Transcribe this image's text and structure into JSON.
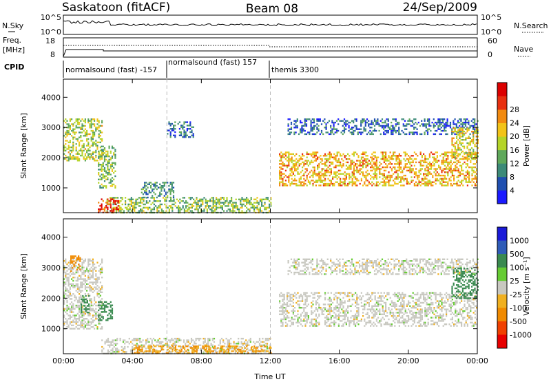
{
  "header": {
    "station": "Saskatoon (fitACF)",
    "beam": "Beam 08",
    "date": "24/Sep/2009"
  },
  "top_panels": {
    "nsky_label": "N.Sky",
    "nsky_ticks": [
      "10^5",
      "10^0"
    ],
    "nsearch_label": "N.Search",
    "nsearch_ticks": [
      "10^5",
      "10^0"
    ],
    "freq_label": "Freq.",
    "freq_unit": "[MHz]",
    "freq_ticks": [
      "18",
      "8"
    ],
    "nave_label": "Nave",
    "nave_ticks": [
      "60",
      "0"
    ],
    "cpid_label": "CPID",
    "cpid_segments": [
      "normalsound (fast) -157",
      "normalsound (fast) 157",
      "themis 3300"
    ]
  },
  "panel_power": {
    "ylabel": "Slant Range [km]",
    "colorbar_label": "Power [dB]"
  },
  "panel_velocity": {
    "ylabel": "Slant Range [km]",
    "colorbar_label": "Velocity [m s⁻¹]"
  },
  "xaxis": {
    "label": "Time UT"
  },
  "chart_data": [
    {
      "type": "heatmap",
      "name": "power",
      "x_ticks": [
        "00:00",
        "04:00",
        "08:00",
        "12:00",
        "16:00",
        "20:00",
        "00:00"
      ],
      "y_ticks": [
        1000,
        2000,
        3000,
        4000
      ],
      "xlim_hours": [
        0,
        24
      ],
      "ylim_km": [
        180,
        4600
      ],
      "colorbar_ticks": [
        4,
        8,
        12,
        16,
        20,
        24,
        28
      ],
      "colorbar_colors": [
        "#1a1aff",
        "#1f4fb0",
        "#3c8a78",
        "#5fa85a",
        "#b4d428",
        "#f2c318",
        "#f28a10",
        "#e83010",
        "#dc0000"
      ],
      "cpid_change_hours": [
        6,
        12
      ],
      "echo_regions": [
        {
          "t0": 2.5,
          "t1": 12.0,
          "r0": 190,
          "r1": 700,
          "value": 14
        },
        {
          "t0": 2.0,
          "t1": 3.2,
          "r0": 190,
          "r1": 650,
          "value": 26
        },
        {
          "t0": 0.0,
          "t1": 2.2,
          "r0": 1900,
          "r1": 3300,
          "value": 16
        },
        {
          "t0": 2.0,
          "t1": 3.0,
          "r0": 1000,
          "r1": 2400,
          "value": 14
        },
        {
          "t0": 4.5,
          "t1": 6.5,
          "r0": 700,
          "r1": 1200,
          "value": 10
        },
        {
          "t0": 6.0,
          "t1": 7.5,
          "r0": 2700,
          "r1": 3200,
          "value": 8
        },
        {
          "t0": 12.5,
          "t1": 24.0,
          "r0": 1100,
          "r1": 2200,
          "value": 20
        },
        {
          "t0": 13.0,
          "t1": 24.0,
          "r0": 2800,
          "r1": 3300,
          "value": 8
        },
        {
          "t0": 22.5,
          "t1": 24.0,
          "r0": 2000,
          "r1": 3000,
          "value": 18
        }
      ]
    },
    {
      "type": "heatmap",
      "name": "velocity",
      "x_ticks": [
        "00:00",
        "04:00",
        "08:00",
        "12:00",
        "16:00",
        "20:00",
        "00:00"
      ],
      "y_ticks": [
        1000,
        2000,
        3000,
        4000
      ],
      "xlim_hours": [
        0,
        24
      ],
      "ylim_km": [
        180,
        4600
      ],
      "colorbar_ticks": [
        1000,
        500,
        100,
        25,
        -25,
        -100,
        -500,
        -1000
      ],
      "colorbar_colors": [
        "#1a1ad8",
        "#2f5cb8",
        "#3a8a50",
        "#66cc33",
        "#c8c8c0",
        "#f0b020",
        "#f08a00",
        "#f04000",
        "#e80000"
      ],
      "cpid_change_hours": [
        6,
        12
      ],
      "echo_regions": [
        {
          "t0": 2.2,
          "t1": 12.0,
          "r0": 190,
          "r1": 700,
          "value": 0
        },
        {
          "t0": 4.0,
          "t1": 12.0,
          "r0": 190,
          "r1": 450,
          "value": -100
        },
        {
          "t0": 0.0,
          "t1": 2.2,
          "r0": 1000,
          "r1": 3300,
          "value": 0
        },
        {
          "t0": 0.4,
          "t1": 1.0,
          "r0": 2900,
          "r1": 3400,
          "value": -300
        },
        {
          "t0": 1.0,
          "t1": 1.5,
          "r0": 1500,
          "r1": 2100,
          "value": 200
        },
        {
          "t0": 2.0,
          "t1": 2.8,
          "r0": 1300,
          "r1": 1900,
          "value": 150
        },
        {
          "t0": 12.5,
          "t1": 24.0,
          "r0": 1100,
          "r1": 2200,
          "value": 0
        },
        {
          "t0": 13.0,
          "t1": 24.0,
          "r0": 2800,
          "r1": 3300,
          "value": 0
        },
        {
          "t0": 22.5,
          "t1": 24.0,
          "r0": 2000,
          "r1": 3000,
          "value": 300
        }
      ]
    }
  ]
}
